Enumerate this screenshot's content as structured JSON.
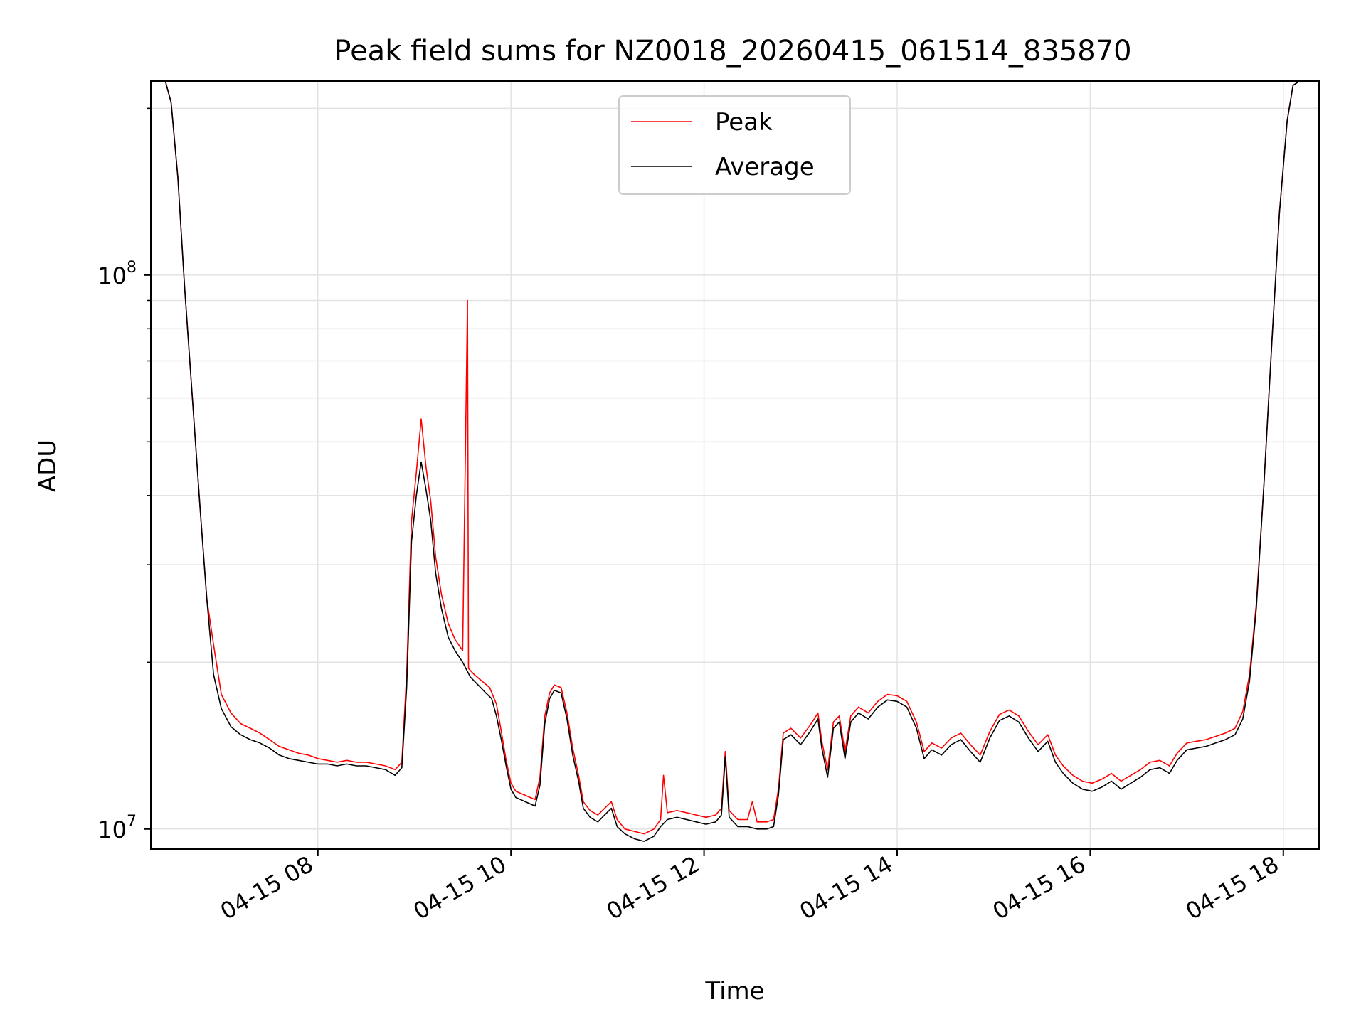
{
  "chart_data": {
    "type": "line",
    "title": "Peak field sums for NZ0018_20260415_061514_835870",
    "xlabel": "Time",
    "ylabel": "ADU",
    "yscale": "log",
    "xlim": [
      6.27,
      18.37
    ],
    "ylim": [
      9.2,
      224
    ],
    "grid": true,
    "legend_position": "top-center",
    "x_ticks": [
      {
        "value": 8,
        "label": "04-15 08"
      },
      {
        "value": 10,
        "label": "04-15 10"
      },
      {
        "value": 12,
        "label": "04-15 12"
      },
      {
        "value": 14,
        "label": "04-15 14"
      },
      {
        "value": 16,
        "label": "04-15 16"
      },
      {
        "value": 18,
        "label": "04-15 18"
      }
    ],
    "y_ticks": [
      {
        "value": 10,
        "base": "10",
        "exp": "7"
      },
      {
        "value": 100,
        "base": "10",
        "exp": "8"
      }
    ],
    "y_unit_scale": "values in units of 10^6 ADU",
    "series": [
      {
        "name": "Average",
        "color": "#000000",
        "points": [
          [
            6.27,
            224
          ],
          [
            6.42,
            224
          ],
          [
            6.48,
            205
          ],
          [
            6.55,
            150
          ],
          [
            6.62,
            95
          ],
          [
            6.7,
            60
          ],
          [
            6.78,
            38
          ],
          [
            6.85,
            26
          ],
          [
            6.92,
            19
          ],
          [
            7.0,
            16.5
          ],
          [
            7.1,
            15.3
          ],
          [
            7.2,
            14.8
          ],
          [
            7.3,
            14.5
          ],
          [
            7.4,
            14.3
          ],
          [
            7.5,
            14.0
          ],
          [
            7.6,
            13.6
          ],
          [
            7.7,
            13.4
          ],
          [
            7.8,
            13.3
          ],
          [
            7.9,
            13.2
          ],
          [
            8.0,
            13.1
          ],
          [
            8.1,
            13.1
          ],
          [
            8.2,
            13.0
          ],
          [
            8.3,
            13.1
          ],
          [
            8.4,
            13.0
          ],
          [
            8.5,
            13.0
          ],
          [
            8.6,
            12.9
          ],
          [
            8.7,
            12.8
          ],
          [
            8.8,
            12.5
          ],
          [
            8.87,
            12.9
          ],
          [
            8.92,
            18
          ],
          [
            8.97,
            33
          ],
          [
            9.02,
            40
          ],
          [
            9.07,
            46
          ],
          [
            9.12,
            41
          ],
          [
            9.17,
            36
          ],
          [
            9.22,
            29
          ],
          [
            9.28,
            25
          ],
          [
            9.35,
            22.2
          ],
          [
            9.42,
            21
          ],
          [
            9.5,
            20
          ],
          [
            9.58,
            18.8
          ],
          [
            9.66,
            18.2
          ],
          [
            9.74,
            17.6
          ],
          [
            9.8,
            17.2
          ],
          [
            9.85,
            16
          ],
          [
            9.9,
            14.5
          ],
          [
            9.95,
            13
          ],
          [
            10.0,
            11.8
          ],
          [
            10.05,
            11.4
          ],
          [
            10.1,
            11.3
          ],
          [
            10.15,
            11.2
          ],
          [
            10.2,
            11.1
          ],
          [
            10.25,
            11.0
          ],
          [
            10.3,
            12
          ],
          [
            10.35,
            15.5
          ],
          [
            10.4,
            17.2
          ],
          [
            10.45,
            17.8
          ],
          [
            10.52,
            17.6
          ],
          [
            10.58,
            15.8
          ],
          [
            10.64,
            13.6
          ],
          [
            10.7,
            12.2
          ],
          [
            10.75,
            10.9
          ],
          [
            10.82,
            10.5
          ],
          [
            10.9,
            10.3
          ],
          [
            10.97,
            10.6
          ],
          [
            11.04,
            10.9
          ],
          [
            11.1,
            10.1
          ],
          [
            11.18,
            9.8
          ],
          [
            11.28,
            9.6
          ],
          [
            11.38,
            9.5
          ],
          [
            11.48,
            9.7
          ],
          [
            11.55,
            10.1
          ],
          [
            11.62,
            10.4
          ],
          [
            11.72,
            10.5
          ],
          [
            11.82,
            10.4
          ],
          [
            11.92,
            10.3
          ],
          [
            12.02,
            10.2
          ],
          [
            12.12,
            10.3
          ],
          [
            12.18,
            10.6
          ],
          [
            12.22,
            13.5
          ],
          [
            12.26,
            10.5
          ],
          [
            12.35,
            10.1
          ],
          [
            12.45,
            10.1
          ],
          [
            12.55,
            10.0
          ],
          [
            12.65,
            10.0
          ],
          [
            12.72,
            10.1
          ],
          [
            12.77,
            11.5
          ],
          [
            12.82,
            14.5
          ],
          [
            12.9,
            14.8
          ],
          [
            13.0,
            14.2
          ],
          [
            13.1,
            15.0
          ],
          [
            13.18,
            15.8
          ],
          [
            13.22,
            14.0
          ],
          [
            13.28,
            12.4
          ],
          [
            13.34,
            15.2
          ],
          [
            13.4,
            15.6
          ],
          [
            13.46,
            13.4
          ],
          [
            13.52,
            15.6
          ],
          [
            13.6,
            16.2
          ],
          [
            13.7,
            15.8
          ],
          [
            13.8,
            16.6
          ],
          [
            13.9,
            17.1
          ],
          [
            14.0,
            17.0
          ],
          [
            14.1,
            16.6
          ],
          [
            14.2,
            15.2
          ],
          [
            14.28,
            13.4
          ],
          [
            14.36,
            13.9
          ],
          [
            14.46,
            13.6
          ],
          [
            14.56,
            14.2
          ],
          [
            14.66,
            14.5
          ],
          [
            14.76,
            13.8
          ],
          [
            14.86,
            13.2
          ],
          [
            14.96,
            14.6
          ],
          [
            15.06,
            15.7
          ],
          [
            15.16,
            16.0
          ],
          [
            15.26,
            15.6
          ],
          [
            15.36,
            14.6
          ],
          [
            15.46,
            13.8
          ],
          [
            15.56,
            14.4
          ],
          [
            15.64,
            13.2
          ],
          [
            15.72,
            12.6
          ],
          [
            15.82,
            12.1
          ],
          [
            15.92,
            11.8
          ],
          [
            16.02,
            11.7
          ],
          [
            16.12,
            11.9
          ],
          [
            16.22,
            12.2
          ],
          [
            16.32,
            11.8
          ],
          [
            16.42,
            12.1
          ],
          [
            16.52,
            12.4
          ],
          [
            16.62,
            12.8
          ],
          [
            16.72,
            12.9
          ],
          [
            16.82,
            12.6
          ],
          [
            16.9,
            13.3
          ],
          [
            17.0,
            13.9
          ],
          [
            17.1,
            14.0
          ],
          [
            17.2,
            14.1
          ],
          [
            17.3,
            14.3
          ],
          [
            17.4,
            14.5
          ],
          [
            17.5,
            14.8
          ],
          [
            17.58,
            15.8
          ],
          [
            17.65,
            18.5
          ],
          [
            17.72,
            25
          ],
          [
            17.8,
            42
          ],
          [
            17.88,
            75
          ],
          [
            17.96,
            130
          ],
          [
            18.04,
            190
          ],
          [
            18.1,
            220
          ],
          [
            18.17,
            224
          ],
          [
            18.37,
            224
          ]
        ]
      },
      {
        "name": "Peak",
        "color": "#ff0000",
        "points": [
          [
            6.27,
            224
          ],
          [
            6.42,
            224
          ],
          [
            6.48,
            205
          ],
          [
            6.55,
            150
          ],
          [
            6.62,
            95
          ],
          [
            6.7,
            60
          ],
          [
            6.78,
            38
          ],
          [
            6.85,
            26
          ],
          [
            6.92,
            21.5
          ],
          [
            7.0,
            17.5
          ],
          [
            7.1,
            16.2
          ],
          [
            7.2,
            15.5
          ],
          [
            7.3,
            15.2
          ],
          [
            7.4,
            14.9
          ],
          [
            7.5,
            14.5
          ],
          [
            7.6,
            14.1
          ],
          [
            7.7,
            13.9
          ],
          [
            7.8,
            13.7
          ],
          [
            7.9,
            13.6
          ],
          [
            8.0,
            13.4
          ],
          [
            8.1,
            13.3
          ],
          [
            8.2,
            13.2
          ],
          [
            8.3,
            13.3
          ],
          [
            8.4,
            13.2
          ],
          [
            8.5,
            13.2
          ],
          [
            8.6,
            13.1
          ],
          [
            8.7,
            13.0
          ],
          [
            8.8,
            12.8
          ],
          [
            8.87,
            13.2
          ],
          [
            8.92,
            19
          ],
          [
            8.97,
            36
          ],
          [
            9.02,
            44
          ],
          [
            9.07,
            55
          ],
          [
            9.12,
            45
          ],
          [
            9.17,
            39
          ],
          [
            9.22,
            31
          ],
          [
            9.28,
            26.5
          ],
          [
            9.35,
            23.5
          ],
          [
            9.42,
            22
          ],
          [
            9.5,
            21
          ],
          [
            9.55,
            90
          ],
          [
            9.56,
            19.5
          ],
          [
            9.62,
            19
          ],
          [
            9.7,
            18.5
          ],
          [
            9.78,
            18
          ],
          [
            9.85,
            16.8
          ],
          [
            9.9,
            15
          ],
          [
            9.95,
            13.3
          ],
          [
            10.0,
            12.1
          ],
          [
            10.05,
            11.7
          ],
          [
            10.1,
            11.6
          ],
          [
            10.15,
            11.5
          ],
          [
            10.2,
            11.4
          ],
          [
            10.25,
            11.3
          ],
          [
            10.3,
            12.4
          ],
          [
            10.35,
            16
          ],
          [
            10.4,
            17.6
          ],
          [
            10.45,
            18.2
          ],
          [
            10.52,
            18.0
          ],
          [
            10.58,
            16.2
          ],
          [
            10.64,
            14.0
          ],
          [
            10.7,
            12.5
          ],
          [
            10.75,
            11.2
          ],
          [
            10.82,
            10.8
          ],
          [
            10.9,
            10.6
          ],
          [
            10.97,
            10.9
          ],
          [
            11.04,
            11.2
          ],
          [
            11.1,
            10.4
          ],
          [
            11.18,
            10.0
          ],
          [
            11.28,
            9.9
          ],
          [
            11.38,
            9.8
          ],
          [
            11.48,
            10.0
          ],
          [
            11.55,
            10.4
          ],
          [
            11.58,
            12.5
          ],
          [
            11.62,
            10.7
          ],
          [
            11.72,
            10.8
          ],
          [
            11.82,
            10.7
          ],
          [
            11.92,
            10.6
          ],
          [
            12.02,
            10.5
          ],
          [
            12.12,
            10.6
          ],
          [
            12.18,
            10.9
          ],
          [
            12.22,
            13.8
          ],
          [
            12.26,
            10.8
          ],
          [
            12.35,
            10.4
          ],
          [
            12.45,
            10.4
          ],
          [
            12.5,
            11.2
          ],
          [
            12.55,
            10.3
          ],
          [
            12.65,
            10.3
          ],
          [
            12.72,
            10.4
          ],
          [
            12.77,
            11.8
          ],
          [
            12.82,
            14.9
          ],
          [
            12.9,
            15.2
          ],
          [
            13.0,
            14.6
          ],
          [
            13.1,
            15.4
          ],
          [
            13.18,
            16.2
          ],
          [
            13.22,
            14.4
          ],
          [
            13.28,
            12.8
          ],
          [
            13.34,
            15.6
          ],
          [
            13.4,
            16.0
          ],
          [
            13.46,
            13.8
          ],
          [
            13.52,
            16.0
          ],
          [
            13.6,
            16.6
          ],
          [
            13.7,
            16.2
          ],
          [
            13.8,
            17.0
          ],
          [
            13.9,
            17.5
          ],
          [
            14.0,
            17.4
          ],
          [
            14.1,
            17.0
          ],
          [
            14.2,
            15.6
          ],
          [
            14.28,
            13.8
          ],
          [
            14.36,
            14.3
          ],
          [
            14.46,
            14.0
          ],
          [
            14.56,
            14.6
          ],
          [
            14.66,
            14.9
          ],
          [
            14.76,
            14.2
          ],
          [
            14.86,
            13.6
          ],
          [
            14.96,
            15.0
          ],
          [
            15.06,
            16.1
          ],
          [
            15.16,
            16.4
          ],
          [
            15.26,
            16.0
          ],
          [
            15.36,
            15.0
          ],
          [
            15.46,
            14.2
          ],
          [
            15.56,
            14.8
          ],
          [
            15.64,
            13.6
          ],
          [
            15.72,
            13.0
          ],
          [
            15.82,
            12.5
          ],
          [
            15.92,
            12.2
          ],
          [
            16.02,
            12.1
          ],
          [
            16.12,
            12.3
          ],
          [
            16.22,
            12.6
          ],
          [
            16.32,
            12.2
          ],
          [
            16.42,
            12.5
          ],
          [
            16.52,
            12.8
          ],
          [
            16.62,
            13.2
          ],
          [
            16.72,
            13.3
          ],
          [
            16.82,
            13.0
          ],
          [
            16.9,
            13.7
          ],
          [
            17.0,
            14.3
          ],
          [
            17.1,
            14.4
          ],
          [
            17.2,
            14.5
          ],
          [
            17.3,
            14.7
          ],
          [
            17.4,
            14.9
          ],
          [
            17.5,
            15.2
          ],
          [
            17.58,
            16.3
          ],
          [
            17.65,
            19.0
          ],
          [
            17.72,
            25.5
          ],
          [
            17.8,
            42
          ],
          [
            17.88,
            75
          ],
          [
            17.96,
            130
          ],
          [
            18.04,
            190
          ],
          [
            18.1,
            220
          ],
          [
            18.17,
            224
          ],
          [
            18.37,
            224
          ]
        ]
      }
    ]
  }
}
